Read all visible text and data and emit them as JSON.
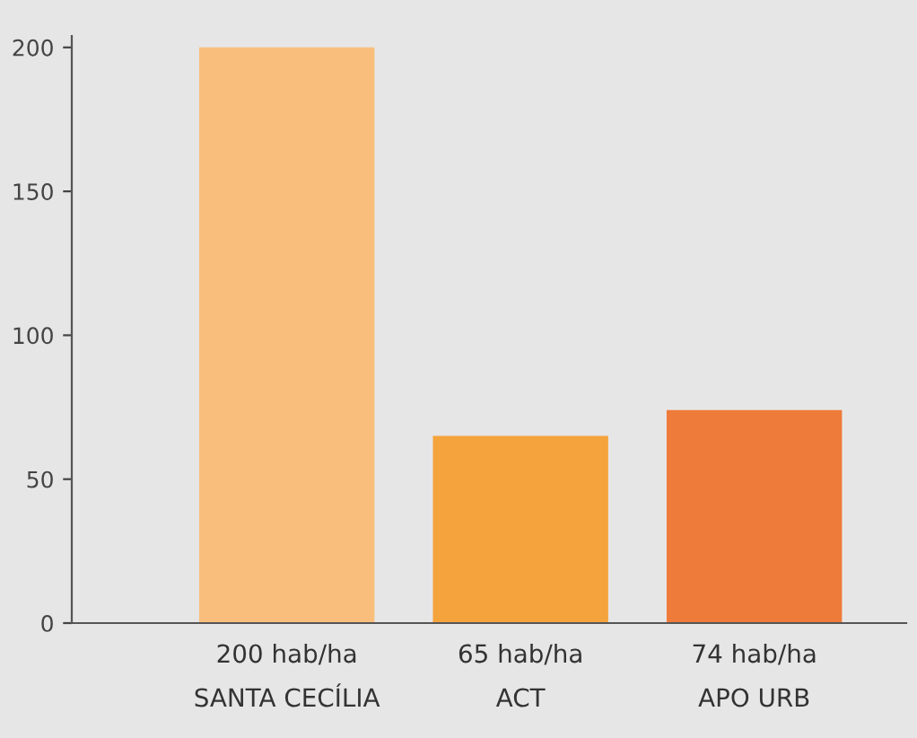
{
  "chart_data": {
    "type": "bar",
    "categories": [
      "SANTA CECÍLIA",
      "ACT",
      "APO URB"
    ],
    "values": [
      200,
      65,
      74
    ],
    "colors": [
      "#f9be7c",
      "#f5a33c",
      "#ef7b3a"
    ],
    "value_labels": [
      "200 hab/ha",
      "65 hab/ha",
      "74 hab/ha"
    ],
    "ylim": [
      0,
      204
    ],
    "yticks": [
      0,
      50,
      100,
      150,
      200
    ],
    "grid": false,
    "legend": false
  }
}
